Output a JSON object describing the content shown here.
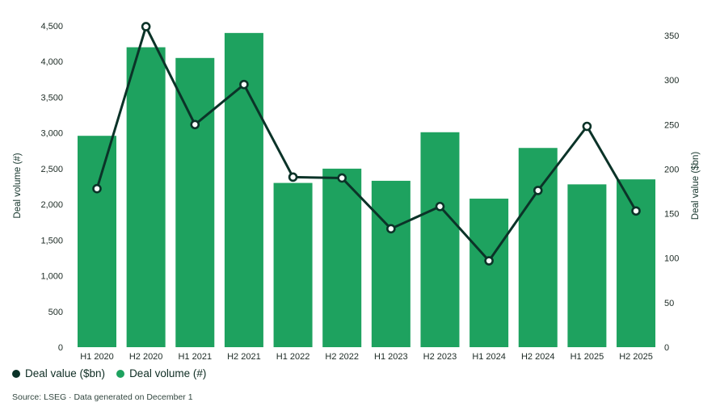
{
  "chart_data": {
    "type": "combo",
    "categories": [
      "H1 2020",
      "H2 2020",
      "H1 2021",
      "H2 2021",
      "H1 2022",
      "H2 2022",
      "H1 2023",
      "H2 2023",
      "H1 2024",
      "H2 2024",
      "H1 2025",
      "H2 2025"
    ],
    "series": [
      {
        "name": "Deal value ($bn)",
        "type": "line",
        "axis": "right",
        "color": "#0b3328",
        "marker": "open-circle",
        "values": [
          178,
          360,
          250,
          295,
          191,
          190,
          133,
          158,
          97,
          176,
          248,
          153
        ]
      },
      {
        "name": "Deal volume (#)",
        "type": "bar",
        "axis": "left",
        "color": "#1ea25f",
        "values": [
          2960,
          4200,
          4050,
          4400,
          2300,
          2500,
          2330,
          3010,
          2080,
          2790,
          2280,
          2350
        ]
      }
    ],
    "axes": {
      "left": {
        "title": "Deal volume (#)",
        "min": 0,
        "max": 4500,
        "tick_step": 500,
        "tick_format": "comma"
      },
      "right": {
        "title": "Deal value ($bn)",
        "min": 0,
        "max": 350,
        "tick_step": 50,
        "tick_format": "plain"
      }
    },
    "grid": false,
    "legend_position": "bottom-left"
  },
  "legend": {
    "items": [
      {
        "label": "Deal value ($bn)",
        "color": "#0b3328"
      },
      {
        "label": "Deal volume (#)",
        "color": "#1ea25f"
      }
    ]
  },
  "footer": {
    "source": "Source: LSEG · Data generated on December 1"
  },
  "colors": {
    "bar": "#1ea25f",
    "line": "#0b3328",
    "marker_fill": "#ffffff",
    "tick_text": "#1c2a24",
    "axis_title_text": "#14332a",
    "source_text": "#32463f"
  }
}
